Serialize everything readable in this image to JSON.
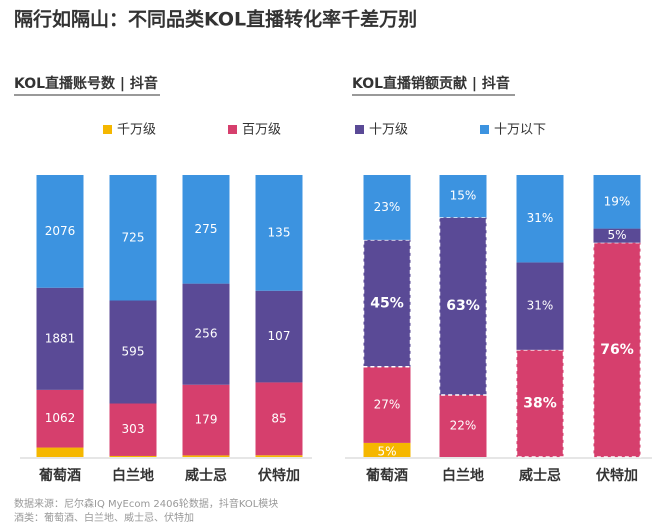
{
  "title": "隔行如隔山：不同品类KOL直播转化率千差万别",
  "legend": [
    {
      "name": "千万级",
      "color": "#f5b700"
    },
    {
      "name": "百万级",
      "color": "#d63f6d"
    },
    {
      "name": "十万级",
      "color": "#5a4a96"
    },
    {
      "name": "十万以下",
      "color": "#3c93e0"
    }
  ],
  "chart_data": [
    {
      "type": "stacked-bar-100",
      "title": "KOL直播账号数 | 抖音",
      "categories": [
        "葡萄酒",
        "白兰地",
        "威士忌",
        "伏特加"
      ],
      "series": [
        {
          "values": [
            174,
            6,
            4,
            2
          ]
        },
        {
          "values": [
            1062,
            303,
            179,
            85
          ]
        },
        {
          "values": [
            1881,
            595,
            256,
            107
          ]
        },
        {
          "values": [
            2076,
            725,
            275,
            135
          ]
        }
      ]
    },
    {
      "type": "stacked-bar-100",
      "title": "KOL直播销额贡献 | 抖音",
      "categories": [
        "葡萄酒",
        "白兰地",
        "威士忌",
        "伏特加"
      ],
      "series": [
        {
          "values": [
            5,
            0,
            0,
            0
          ],
          "value_labels": [
            "5%",
            null,
            null,
            null
          ],
          "emphasis": [
            false,
            false,
            false,
            false
          ]
        },
        {
          "values": [
            27,
            22,
            38,
            76
          ],
          "value_labels": [
            "27%",
            "22%",
            "38%",
            "76%"
          ],
          "emphasis": [
            false,
            false,
            true,
            true
          ]
        },
        {
          "values": [
            45,
            63,
            31,
            5
          ],
          "value_labels": [
            "45%",
            "63%",
            "31%",
            "5%"
          ],
          "emphasis": [
            true,
            true,
            false,
            false
          ]
        },
        {
          "values": [
            23,
            15,
            31,
            19
          ],
          "value_labels": [
            "23%",
            "15%",
            "31%",
            "19%"
          ],
          "emphasis": [
            false,
            false,
            false,
            false
          ]
        }
      ]
    }
  ],
  "source": [
    "数据来源：尼尔森IQ MyEcom 2406轮数据，抖音KOL模块",
    "酒类：葡萄酒、白兰地、威士忌、伏特加"
  ]
}
